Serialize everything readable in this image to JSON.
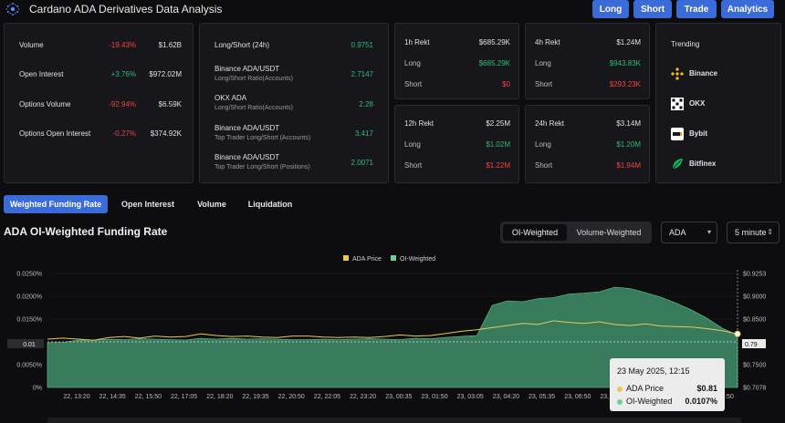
{
  "header": {
    "title": "Cardano ADA Derivatives Data Analysis",
    "buttons": [
      "Long",
      "Short",
      "Trade",
      "Analytics"
    ]
  },
  "stats": [
    {
      "label": "Volume",
      "change": "-19.43%",
      "value": "$1.62B"
    },
    {
      "label": "Open Interest",
      "change": "+3.76%",
      "value": "$972.02M"
    },
    {
      "label": "Options Volume",
      "change": "-92.94%",
      "value": "$6.59K"
    },
    {
      "label": "Options Open Interest",
      "change": "-0.27%",
      "value": "$374.92K"
    }
  ],
  "ratios": [
    {
      "label": "Long/Short (24h)",
      "sub": "",
      "value": "0.9751"
    },
    {
      "label": "Binance ADA/USDT",
      "sub": "Long/Short Ratio(Accounts)",
      "value": "2.7147"
    },
    {
      "label": "OKX ADA",
      "sub": "Long/Short Ratio(Accounts)",
      "value": "2.28"
    },
    {
      "label": "Binance ADA/USDT",
      "sub": "Top Trader Long/Short (Accounts)",
      "value": "3.417"
    },
    {
      "label": "Binance ADA/USDT",
      "sub": "Top Trader Long/Short (Positions)",
      "value": "2.0071"
    }
  ],
  "rekt": [
    {
      "title": "1h Rekt",
      "total": "$685.29K",
      "long_label": "Long",
      "long": "$685.29K",
      "short_label": "Short",
      "short": "$0"
    },
    {
      "title": "4h Rekt",
      "total": "$1.24M",
      "long_label": "Long",
      "long": "$943.83K",
      "short_label": "Short",
      "short": "$293.23K"
    },
    {
      "title": "12h Rekt",
      "total": "$2.25M",
      "long_label": "Long",
      "long": "$1.02M",
      "short_label": "Short",
      "short": "$1.22M"
    },
    {
      "title": "24h Rekt",
      "total": "$3.14M",
      "long_label": "Long",
      "long": "$1.20M",
      "short_label": "Short",
      "short": "$1.94M"
    }
  ],
  "trending": {
    "title": "Trending",
    "items": [
      "Binance",
      "OKX",
      "Bybit",
      "Bitfinex"
    ]
  },
  "tabs": [
    "Weighted Funding Rate",
    "Open Interest",
    "Volume",
    "Liquidation"
  ],
  "section": {
    "title": "ADA OI-Weighted Funding Rate",
    "toggle": [
      "OI-Weighted",
      "Volume-Weighted"
    ],
    "coin_select": "ADA",
    "interval_select": "5 minute"
  },
  "tooltip": {
    "date": "23 May 2025, 12:15",
    "rows": [
      {
        "label": "ADA Price",
        "value": "$0.81",
        "color": "#e8c85a"
      },
      {
        "label": "OI-Weighted",
        "value": "0.0107%",
        "color": "#6fcf97"
      }
    ]
  },
  "colors": {
    "accent": "#3a6bd8",
    "up": "#2fbd72",
    "down": "#ef4444",
    "area": "#3f8f6a",
    "price_line": "#e8c85a"
  },
  "chart_data": {
    "type": "area",
    "legend": [
      "ADA Price",
      "OI-Weighted"
    ],
    "x_ticks": [
      "22, 13:20",
      "22, 14:35",
      "22, 15:50",
      "22, 17:05",
      "22, 18:20",
      "22, 19:35",
      "22, 20:50",
      "22, 22:05",
      "22, 23:20",
      "23, 00:35",
      "23, 01:50",
      "23, 03:05",
      "23, 04:20",
      "23, 05:35",
      "23, 06:50",
      "23, 08:05",
      "23, 09:20",
      "23, 10:35",
      "23, 11:50"
    ],
    "y_left_ticks": [
      "0.0250%",
      "0.0200%",
      "0.0150%",
      "0.0100%",
      "0.0050%",
      "0%"
    ],
    "y_right_ticks": [
      "$0.9253",
      "$0.9000",
      "$0.8500",
      "$0.8000",
      "$0.7500",
      "$0.7078"
    ],
    "ylim_left": [
      0,
      0.025
    ],
    "ylim_right": [
      0.7078,
      0.9253
    ],
    "reference_line_value": 0.01,
    "reference_line_label": "0.01",
    "current_price_label": "0.79",
    "series": [
      {
        "name": "OI-Weighted",
        "values": [
          0.0098,
          0.0099,
          0.0104,
          0.0104,
          0.0106,
          0.0105,
          0.0107,
          0.0106,
          0.0105,
          0.0104,
          0.0108,
          0.0106,
          0.0108,
          0.0106,
          0.0107,
          0.0106,
          0.0105,
          0.0105,
          0.0106,
          0.0105,
          0.0106,
          0.0107,
          0.0106,
          0.0105,
          0.0108,
          0.0107,
          0.011,
          0.0112,
          0.0114,
          0.018,
          0.019,
          0.0188,
          0.0195,
          0.0197,
          0.0205,
          0.0207,
          0.021,
          0.022,
          0.0217,
          0.0208,
          0.0198,
          0.0185,
          0.017,
          0.0152,
          0.013,
          0.0115
        ]
      },
      {
        "name": "ADA Price",
        "values": [
          0.8,
          0.802,
          0.8,
          0.798,
          0.803,
          0.805,
          0.802,
          0.806,
          0.804,
          0.805,
          0.81,
          0.807,
          0.805,
          0.806,
          0.804,
          0.803,
          0.806,
          0.806,
          0.804,
          0.803,
          0.804,
          0.803,
          0.805,
          0.808,
          0.806,
          0.807,
          0.811,
          0.815,
          0.818,
          0.822,
          0.826,
          0.83,
          0.828,
          0.835,
          0.832,
          0.83,
          0.833,
          0.828,
          0.826,
          0.829,
          0.825,
          0.824,
          0.823,
          0.82,
          0.816,
          0.81
        ]
      }
    ]
  }
}
